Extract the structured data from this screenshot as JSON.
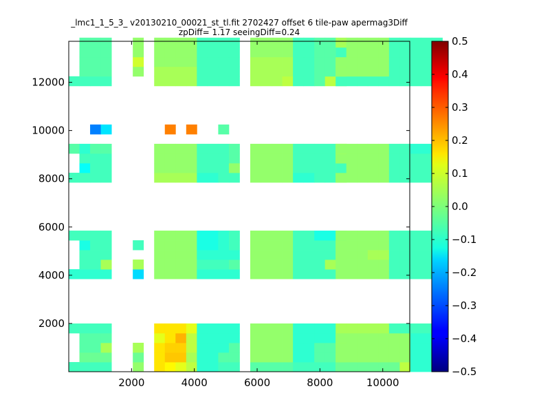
{
  "chart_data": {
    "type": "heatmap",
    "title_line1": "_lmc1_1_5_3_ v20130210_00021_st_tl.fit 2702427 offset 6 tile-paw apermag3Diff",
    "title_line2": "zpDiff= 1.17 seeingDiff=0.24",
    "xlabel": "",
    "ylabel": "",
    "xlim": [
      0,
      10860
    ],
    "ylim": [
      0,
      13700
    ],
    "x_ticks": [
      2000,
      4000,
      6000,
      8000,
      10000
    ],
    "y_ticks": [
      2000,
      4000,
      6000,
      8000,
      10000,
      12000
    ],
    "colorbar": {
      "vmin": -0.5,
      "vmax": 0.5,
      "ticks": [
        "0.5",
        "0.4",
        "0.3",
        "0.2",
        "0.1",
        "0.0",
        "−0.1",
        "−0.2",
        "−0.3",
        "−0.4",
        "−0.5"
      ],
      "colormap": "jet"
    },
    "cell_size": [
      340,
      400
    ],
    "column_groups": [
      {
        "columns": [
          0,
          1,
          2,
          3
        ],
        "x0": 0
      },
      {
        "columns": [
          4
        ],
        "x0": 2040
      },
      {
        "columns": [
          5,
          6,
          7,
          8,
          9,
          10,
          11,
          12
        ],
        "x0": 2720
      },
      {
        "columns": [
          13,
          14,
          15,
          16,
          17,
          18,
          19,
          20,
          21,
          22
        ],
        "x0": 5780
      },
      {
        "columns": [
          23,
          24,
          25,
          26,
          27,
          28,
          29,
          30,
          31,
          32
        ],
        "x0": 8500
      }
    ],
    "row_bands": [
      {
        "name": "band-1",
        "y0": 0,
        "values": [
          [
            -0.06,
            -0.06,
            -0.06,
            -0.06,
            0.02,
            0.15,
            0.13,
            0.1,
            0.06,
            -0.08,
            -0.08,
            -0.06,
            -0.06,
            -0.04,
            -0.04,
            -0.04,
            -0.04,
            -0.06,
            -0.06,
            -0.06,
            -0.06,
            0.04,
            null,
            -0.02,
            -0.02,
            -0.02,
            -0.02,
            -0.02,
            -0.02,
            0.06,
            -0.08,
            -0.08,
            -0.08
          ],
          [
            null,
            -0.02,
            -0.02,
            -0.02,
            -0.02,
            0.15,
            0.18,
            0.18,
            0.04,
            -0.08,
            -0.08,
            -0.04,
            -0.04,
            0.02,
            0.02,
            0.02,
            0.02,
            -0.08,
            -0.08,
            -0.04,
            -0.04,
            0.02,
            null,
            0.02,
            0.02,
            0.02,
            0.02,
            0.02,
            0.02,
            0.02,
            -0.08,
            -0.08,
            -0.08
          ],
          [
            null,
            -0.04,
            -0.04,
            0.04,
            0.04,
            0.15,
            0.17,
            0.17,
            0.06,
            -0.08,
            -0.08,
            -0.08,
            -0.04,
            0.02,
            0.02,
            0.02,
            0.02,
            -0.08,
            -0.08,
            -0.04,
            -0.04,
            0.02,
            null,
            0.02,
            0.02,
            0.02,
            0.02,
            0.02,
            0.02,
            0.02,
            -0.08,
            -0.08,
            -0.08
          ],
          [
            null,
            -0.04,
            -0.04,
            -0.04,
            null,
            0.1,
            0.15,
            0.2,
            0.06,
            -0.08,
            -0.08,
            -0.08,
            -0.08,
            0.02,
            0.02,
            0.02,
            0.02,
            -0.08,
            -0.08,
            -0.08,
            -0.08,
            0.04,
            null,
            0.02,
            0.02,
            0.02,
            0.02,
            0.02,
            0.02,
            0.02,
            -0.08,
            -0.08,
            -0.08
          ],
          [
            -0.06,
            -0.06,
            -0.06,
            -0.06,
            null,
            0.15,
            0.15,
            0.15,
            0.1,
            -0.08,
            -0.08,
            -0.08,
            -0.08,
            0.02,
            0.02,
            0.02,
            0.02,
            -0.08,
            -0.08,
            -0.08,
            -0.08,
            0.04,
            null,
            null,
            0.04,
            0.04,
            0.04,
            0.04,
            -0.06,
            -0.06,
            -0.06,
            -0.06,
            -0.06
          ]
        ]
      },
      {
        "name": "band-2",
        "y0": 3850,
        "values": [
          [
            -0.08,
            -0.08,
            -0.08,
            -0.08,
            -0.16,
            0.02,
            0.02,
            0.02,
            0.02,
            -0.08,
            -0.08,
            -0.08,
            -0.08,
            0.02,
            0.02,
            0.02,
            0.02,
            -0.06,
            -0.06,
            -0.06,
            -0.06,
            null,
            null,
            0.02,
            0.02,
            0.02,
            0.02,
            0.02,
            -0.06,
            -0.06,
            -0.06,
            -0.06,
            -0.06
          ],
          [
            null,
            -0.06,
            -0.06,
            0.04,
            0.04,
            0.02,
            0.02,
            0.02,
            0.02,
            -0.06,
            -0.06,
            -0.06,
            -0.04,
            0.02,
            0.02,
            0.02,
            0.02,
            -0.06,
            -0.06,
            -0.06,
            0.04,
            null,
            null,
            0.02,
            0.02,
            0.02,
            0.02,
            0.02,
            -0.06,
            -0.06,
            -0.06,
            -0.06,
            -0.06
          ],
          [
            null,
            -0.06,
            -0.06,
            -0.06,
            null,
            0.02,
            0.02,
            0.02,
            0.02,
            -0.08,
            -0.08,
            -0.08,
            -0.08,
            0.02,
            0.02,
            0.02,
            0.02,
            -0.06,
            -0.06,
            -0.06,
            -0.06,
            0.02,
            null,
            0.02,
            0.02,
            0.02,
            0.04,
            0.04,
            -0.06,
            -0.06,
            -0.06,
            -0.06,
            -0.06
          ],
          [
            null,
            -0.1,
            -0.06,
            -0.06,
            -0.06,
            0.02,
            0.02,
            0.02,
            0.02,
            -0.1,
            -0.1,
            -0.08,
            -0.06,
            0.02,
            0.02,
            0.02,
            0.02,
            -0.06,
            -0.06,
            -0.06,
            -0.06,
            0.02,
            null,
            0.02,
            0.02,
            0.02,
            0.02,
            0.02,
            -0.06,
            -0.06,
            -0.06,
            -0.06,
            -0.06
          ],
          [
            -0.06,
            -0.06,
            -0.06,
            -0.06,
            null,
            0.02,
            0.02,
            0.02,
            0.02,
            -0.1,
            -0.1,
            -0.08,
            -0.06,
            0.02,
            0.02,
            0.02,
            0.02,
            -0.06,
            -0.06,
            -0.1,
            -0.1,
            -0.06,
            null,
            0.02,
            0.02,
            0.02,
            0.02,
            0.02,
            -0.06,
            -0.06,
            -0.06,
            -0.06,
            -0.06
          ]
        ]
      },
      {
        "name": "band-3",
        "y0": 7850,
        "values": [
          [
            -0.06,
            -0.06,
            -0.06,
            -0.06,
            null,
            0.04,
            0.04,
            0.04,
            0.04,
            -0.08,
            -0.08,
            -0.06,
            -0.06,
            0.02,
            0.02,
            0.02,
            0.02,
            -0.08,
            -0.08,
            -0.06,
            -0.06,
            0.04,
            null,
            0.02,
            0.02,
            0.02,
            0.02,
            0.02,
            -0.06,
            -0.06,
            -0.06,
            -0.06,
            -0.06
          ],
          [
            null,
            -0.12,
            -0.06,
            -0.06,
            null,
            0.02,
            0.02,
            0.02,
            0.02,
            -0.06,
            -0.06,
            -0.06,
            0.02,
            0.02,
            0.02,
            0.02,
            0.02,
            -0.06,
            -0.06,
            -0.06,
            -0.06,
            0.04,
            null,
            -0.06,
            0.02,
            0.02,
            0.02,
            0.02,
            -0.06,
            -0.06,
            -0.06,
            -0.06,
            -0.06
          ],
          [
            null,
            -0.06,
            -0.06,
            -0.06,
            null,
            0.02,
            0.02,
            0.02,
            0.02,
            -0.06,
            -0.06,
            -0.06,
            -0.04,
            0.02,
            0.02,
            0.02,
            0.02,
            -0.06,
            -0.06,
            -0.06,
            -0.06,
            0.06,
            null,
            0.02,
            0.02,
            0.02,
            0.02,
            0.02,
            -0.06,
            -0.06,
            -0.06,
            -0.06,
            -0.06
          ],
          [
            -0.04,
            -0.08,
            -0.04,
            -0.04,
            null,
            0.02,
            0.02,
            0.02,
            0.02,
            -0.06,
            -0.06,
            -0.06,
            -0.04,
            0.02,
            0.02,
            0.02,
            0.02,
            -0.06,
            -0.06,
            -0.06,
            -0.06,
            0.08,
            null,
            0.02,
            0.02,
            0.02,
            0.02,
            0.02,
            -0.06,
            -0.06,
            -0.08,
            -0.08,
            -0.06
          ]
        ]
      },
      {
        "name": "band-4",
        "y0": 9850,
        "values": [
          [
            null,
            null,
            -0.25,
            -0.15,
            null,
            null,
            0.25,
            null,
            0.25,
            null,
            null,
            -0.04,
            null,
            null,
            null,
            null,
            null,
            null,
            null,
            null,
            null,
            null,
            null,
            null,
            null,
            null,
            null,
            null,
            null,
            null,
            null,
            null,
            null
          ]
        ]
      },
      {
        "name": "band-5",
        "y0": 11850,
        "values": [
          [
            -0.06,
            -0.06,
            -0.06,
            -0.06,
            null,
            0.04,
            0.04,
            0.04,
            0.04,
            -0.06,
            -0.06,
            -0.06,
            -0.06,
            0.04,
            0.04,
            0.04,
            0.06,
            -0.06,
            -0.06,
            -0.04,
            0.06,
            0.04,
            null,
            -0.06,
            -0.06,
            -0.06,
            -0.06,
            -0.06,
            -0.06,
            -0.06,
            -0.06,
            -0.06,
            -0.06
          ],
          [
            null,
            -0.04,
            -0.04,
            -0.04,
            0.02,
            0.04,
            0.04,
            0.04,
            0.04,
            -0.06,
            -0.06,
            -0.06,
            -0.06,
            0.04,
            0.04,
            0.04,
            0.04,
            -0.06,
            -0.06,
            -0.04,
            -0.04,
            0.04,
            null,
            0.02,
            0.02,
            0.02,
            0.02,
            0.02,
            -0.06,
            -0.06,
            -0.06,
            -0.06,
            -0.06
          ],
          [
            null,
            -0.04,
            -0.04,
            -0.04,
            0.08,
            0.02,
            0.02,
            0.02,
            0.02,
            -0.06,
            -0.06,
            -0.06,
            -0.06,
            0.04,
            0.04,
            0.04,
            0.04,
            -0.06,
            -0.06,
            -0.04,
            -0.04,
            0.04,
            null,
            0.02,
            0.02,
            0.02,
            0.02,
            0.02,
            -0.06,
            -0.06,
            -0.06,
            -0.06,
            -0.06
          ],
          [
            null,
            -0.04,
            -0.04,
            -0.04,
            0.02,
            0.02,
            0.02,
            0.02,
            0.02,
            -0.06,
            -0.06,
            -0.06,
            -0.06,
            0.02,
            0.02,
            0.02,
            0.02,
            -0.06,
            -0.06,
            -0.04,
            -0.04,
            0.04,
            null,
            -0.06,
            0.02,
            0.02,
            0.02,
            0.02,
            -0.06,
            -0.06,
            -0.06,
            -0.06,
            -0.06
          ],
          [
            null,
            -0.04,
            -0.04,
            -0.04,
            0.02,
            0.02,
            0.02,
            0.02,
            0.02,
            -0.06,
            -0.06,
            -0.06,
            -0.06,
            0.02,
            0.02,
            0.02,
            0.02,
            -0.06,
            -0.06,
            -0.04,
            -0.04,
            0.04,
            null,
            null,
            0.02,
            0.02,
            0.02,
            0.02,
            -0.06,
            -0.06,
            -0.06,
            -0.06,
            -0.06
          ]
        ]
      }
    ]
  }
}
